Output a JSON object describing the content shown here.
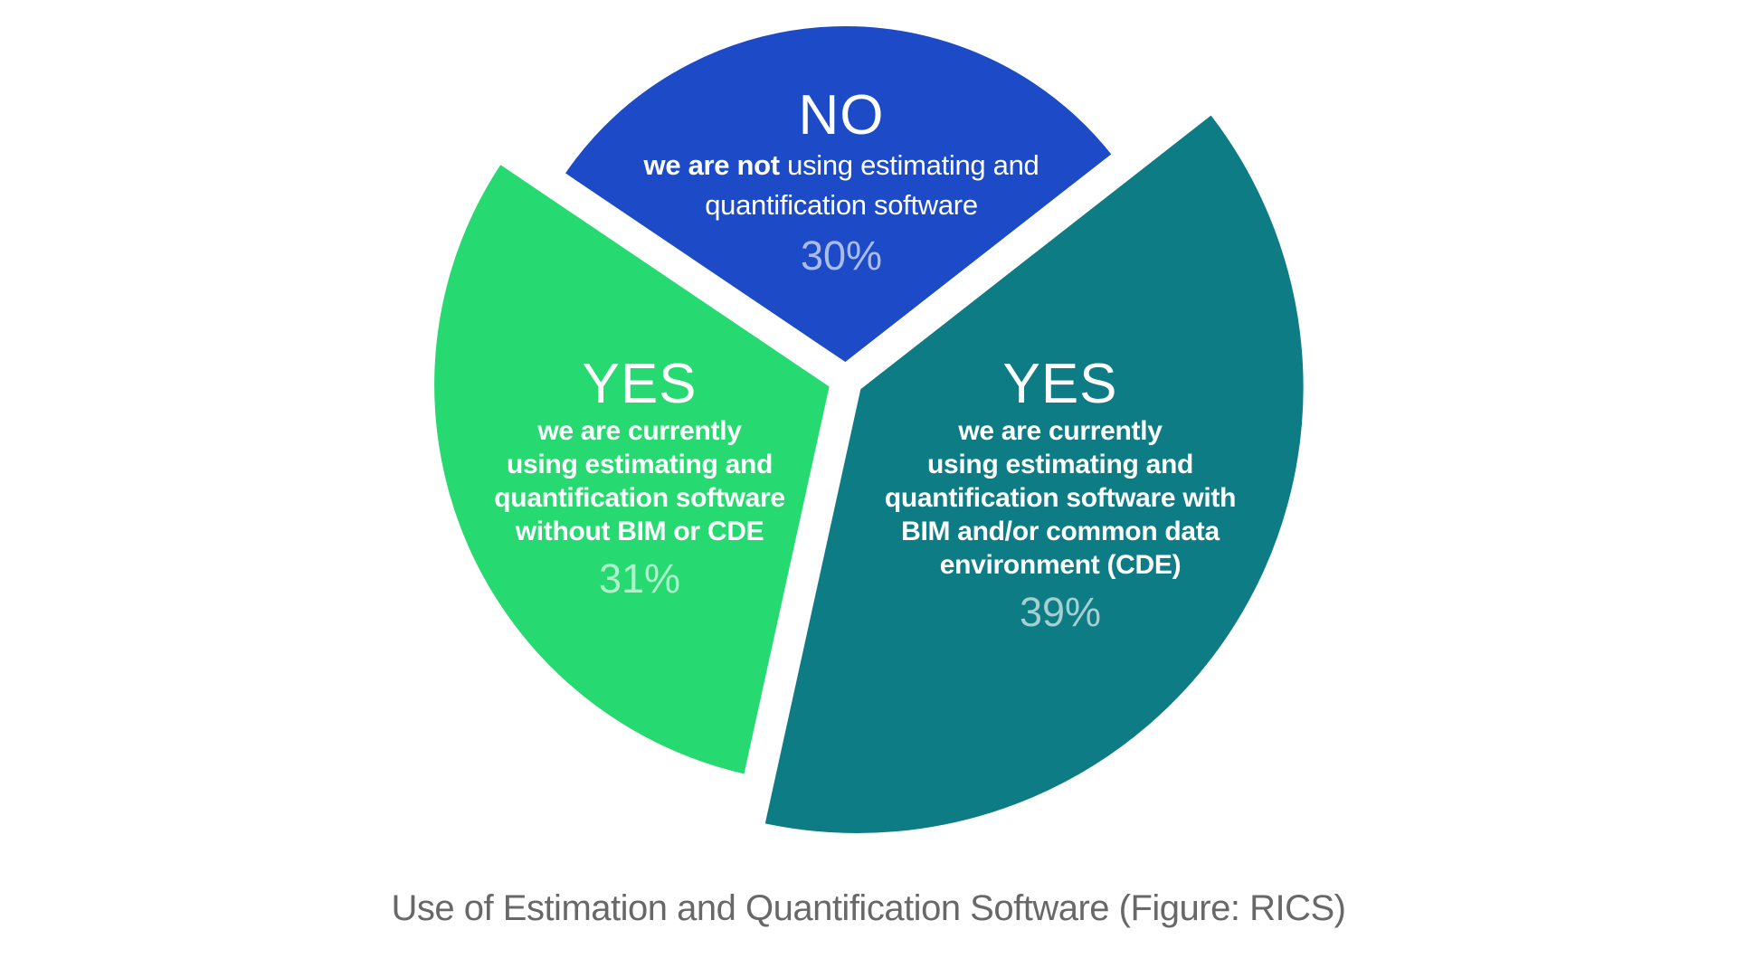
{
  "caption": "Use of Estimation and Quantification Software (Figure: RICS)",
  "labels": {
    "no": {
      "title": "NO",
      "intro_bold": "we are not",
      "line1_rest": " using estimating and",
      "line2": "quantification software",
      "percent": "30%"
    },
    "yes_without_bim": {
      "title": "YES",
      "lines": [
        "we are currently",
        "using estimating and",
        "quantification software",
        "without BIM or CDE"
      ],
      "percent": "31%"
    },
    "yes_with_bim": {
      "title": "YES",
      "lines": [
        "we are currently",
        "using estimating and",
        "quantification software with",
        "BIM and/or common data",
        "environment (CDE)"
      ],
      "percent": "39%"
    }
  },
  "chart_data": {
    "type": "pie",
    "title": "Use of Estimation and Quantification Software (Figure: RICS)",
    "units": "percent",
    "direction": "clockwise",
    "start_angle_deg": -56,
    "labels_inside": true,
    "legend": "none",
    "exploded": true,
    "background_color": "#ffffff",
    "slices": [
      {
        "key": "no",
        "label": "NO",
        "description": "we are not using estimating and quantification software",
        "value": 30,
        "percent_label": "30%",
        "color": "#1d4bc8"
      },
      {
        "key": "yes-with-bim-cde",
        "label": "YES",
        "description": "we are currently using estimating and quantification software with BIM and/or common data environment (CDE)",
        "value": 39,
        "percent_label": "39%",
        "color": "#0d7c84"
      },
      {
        "key": "yes-without-bim-cde",
        "label": "YES",
        "description": "we are currently using estimating and quantification software without BIM or CDE",
        "value": 31,
        "percent_label": "31%",
        "color": "#27d971"
      }
    ]
  }
}
